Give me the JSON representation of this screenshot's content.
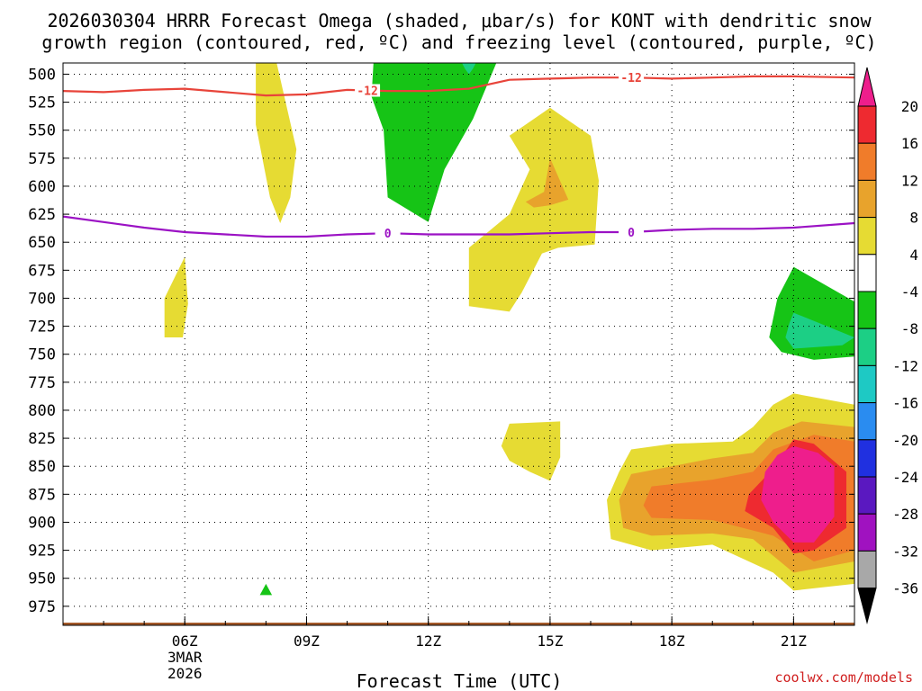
{
  "chart_data": {
    "type": "heatmap",
    "title": "2026030304 HRRR Forecast Omega (shaded, μbar/s) for KONT with dendritic snow growth region (contoured, red, ºC) and freezing level (contoured, purple, ºC)",
    "title_line1": "2026030304 HRRR Forecast Omega (shaded, μbar/s) for KONT with dendritic snow",
    "title_line2": "growth region (contoured, red, ºC) and freezing level (contoured, purple, ºC)",
    "xlabel": "Forecast Time (UTC)",
    "credit": "coolwx.com/models",
    "x_range_hours": [
      3.0,
      22.5
    ],
    "x_ticks": [
      {
        "hour": 6,
        "label": "06Z"
      },
      {
        "hour": 9,
        "label": "09Z"
      },
      {
        "hour": 12,
        "label": "12Z"
      },
      {
        "hour": 15,
        "label": "15Z"
      },
      {
        "hour": 18,
        "label": "18Z"
      },
      {
        "hour": 21,
        "label": "21Z"
      }
    ],
    "date_label": {
      "hour": 6,
      "line1": "3MAR",
      "line2": "2026"
    },
    "y_range_mb": [
      490,
      992
    ],
    "y_ticks": [
      500,
      525,
      550,
      575,
      600,
      625,
      650,
      675,
      700,
      725,
      750,
      775,
      800,
      825,
      850,
      875,
      900,
      925,
      950,
      975
    ],
    "grid": true,
    "surface_mb": 992,
    "colors": {
      "surface": "#a55a2a",
      "contour_minus12": "#e8443a",
      "contour_0": "#9b12c4"
    },
    "colorbar": {
      "labels": [
        "20",
        "16",
        "12",
        "8",
        "4",
        "-4",
        "-8",
        "-12",
        "-16",
        "-20",
        "-24",
        "-28",
        "-32",
        "-36"
      ],
      "bins": [
        {
          "from": 20,
          "to": 16,
          "color": "#ee2a30"
        },
        {
          "from": 16,
          "to": 12,
          "color": "#f07c2a"
        },
        {
          "from": 12,
          "to": 8,
          "color": "#e8a32c"
        },
        {
          "from": 8,
          "to": 4,
          "color": "#e6db33"
        },
        {
          "from": 4,
          "to": -4,
          "color": "#ffffff"
        },
        {
          "from": -4,
          "to": -8,
          "color": "#16c416"
        },
        {
          "from": -8,
          "to": -12,
          "color": "#1ccf85"
        },
        {
          "from": -12,
          "to": -16,
          "color": "#1ec9c4"
        },
        {
          "from": -16,
          "to": -20,
          "color": "#2a8cf0"
        },
        {
          "from": -20,
          "to": -24,
          "color": "#2030e0"
        },
        {
          "from": -24,
          "to": -28,
          "color": "#5a18c0"
        },
        {
          "from": -28,
          "to": -32,
          "color": "#a012c0"
        },
        {
          "from": -32,
          "to": -36,
          "color": "#a8a8a8"
        }
      ],
      "top_arrow_color": "#ee1e8c",
      "bottom_arrow_color": "#000000"
    },
    "contours": [
      {
        "name": "-12 C isotherm",
        "label": "-12",
        "color": "#e8443a",
        "points": [
          [
            3.0,
            515
          ],
          [
            4.0,
            516
          ],
          [
            5.0,
            514
          ],
          [
            6.0,
            513
          ],
          [
            7.0,
            516
          ],
          [
            8.0,
            519
          ],
          [
            9.0,
            518
          ],
          [
            10.0,
            514
          ],
          [
            11.0,
            515
          ],
          [
            12.0,
            515
          ],
          [
            13.0,
            513
          ],
          [
            14.0,
            505
          ],
          [
            15.0,
            504
          ],
          [
            16.0,
            503
          ],
          [
            17.0,
            503
          ],
          [
            18.0,
            504
          ],
          [
            19.0,
            503
          ],
          [
            20.0,
            502
          ],
          [
            21.0,
            502
          ],
          [
            22.5,
            503
          ]
        ],
        "label_hours": [
          10.5,
          17.0
        ]
      },
      {
        "name": "0 C freezing level",
        "label": "0",
        "color": "#9b12c4",
        "points": [
          [
            3.0,
            627
          ],
          [
            4.0,
            632
          ],
          [
            5.0,
            637
          ],
          [
            6.0,
            641
          ],
          [
            7.0,
            643
          ],
          [
            8.0,
            645
          ],
          [
            9.0,
            645
          ],
          [
            10.0,
            643
          ],
          [
            11.0,
            642
          ],
          [
            12.0,
            643
          ],
          [
            13.0,
            643
          ],
          [
            14.0,
            643
          ],
          [
            15.0,
            642
          ],
          [
            16.0,
            641
          ],
          [
            17.0,
            641
          ],
          [
            18.0,
            639
          ],
          [
            19.0,
            638
          ],
          [
            20.0,
            638
          ],
          [
            21.0,
            637
          ],
          [
            22.5,
            633
          ]
        ],
        "label_hours": [
          11.0,
          17.0
        ]
      }
    ],
    "filled_regions": [
      {
        "name": "rising 4 to 8 near 08Z aloft",
        "value_bin": "4 to 8",
        "color": "#e6db33",
        "points": [
          [
            7.75,
            488
          ],
          [
            8.25,
            488
          ],
          [
            8.75,
            567
          ],
          [
            8.6,
            610
          ],
          [
            8.35,
            633
          ],
          [
            8.1,
            610
          ],
          [
            7.75,
            545
          ]
        ]
      },
      {
        "name": "rising 4 to 8 near 06Z midlevel",
        "value_bin": "4 to 8",
        "color": "#e6db33",
        "points": [
          [
            6.0,
            663
          ],
          [
            6.08,
            705
          ],
          [
            5.95,
            735
          ],
          [
            5.5,
            735
          ],
          [
            5.5,
            700
          ]
        ]
      },
      {
        "name": "sinking -4 to -8 near 12Z",
        "value_bin": "-4 to -8",
        "color": "#16c416",
        "points": [
          [
            10.7,
            488
          ],
          [
            12.75,
            488
          ],
          [
            13.7,
            488
          ],
          [
            13.1,
            540
          ],
          [
            12.4,
            585
          ],
          [
            12.0,
            632
          ],
          [
            11.0,
            610
          ],
          [
            10.9,
            550
          ],
          [
            10.6,
            520
          ],
          [
            10.65,
            490
          ]
        ]
      },
      {
        "name": "sinking -8 to -12 near 13Z",
        "value_bin": "-8 to -12",
        "color": "#1ccf85",
        "points": [
          [
            12.8,
            488
          ],
          [
            13.2,
            488
          ],
          [
            13.1,
            495
          ],
          [
            13.0,
            500
          ],
          [
            12.9,
            495
          ]
        ]
      },
      {
        "name": "rising 4 to 8 near 15Z",
        "value_bin": "4 to 8",
        "color": "#e6db33",
        "points": [
          [
            15.0,
            530
          ],
          [
            16.0,
            555
          ],
          [
            16.2,
            595
          ],
          [
            16.1,
            652
          ],
          [
            15.2,
            655
          ],
          [
            14.8,
            660
          ],
          [
            14.3,
            695
          ],
          [
            14.0,
            712
          ],
          [
            13.0,
            707
          ],
          [
            13.0,
            655
          ],
          [
            14.0,
            625
          ],
          [
            14.5,
            585
          ],
          [
            14.0,
            555
          ]
        ]
      },
      {
        "name": "rising 8 to 12 near 15Z",
        "value_bin": "8 to 12",
        "color": "#e8a32c",
        "points": [
          [
            15.0,
            575
          ],
          [
            15.45,
            612
          ],
          [
            15.0,
            617
          ],
          [
            14.6,
            619
          ],
          [
            14.4,
            614
          ],
          [
            14.85,
            605
          ]
        ]
      },
      {
        "name": "rising 4 to 8 near 15Z low level",
        "value_bin": "4 to 8",
        "color": "#e6db33",
        "points": [
          [
            14.0,
            812
          ],
          [
            15.25,
            810
          ],
          [
            15.25,
            842
          ],
          [
            15.0,
            863
          ],
          [
            14.5,
            855
          ],
          [
            14.0,
            845
          ],
          [
            13.8,
            832
          ]
        ]
      },
      {
        "name": "rising 4 to 8 near 19-21Z low level",
        "value_bin": "4 to 8",
        "color": "#e6db33",
        "points": [
          [
            17.0,
            835
          ],
          [
            18.0,
            830
          ],
          [
            19.5,
            828
          ],
          [
            20.0,
            815
          ],
          [
            20.5,
            795
          ],
          [
            21.0,
            785
          ],
          [
            22.5,
            795
          ],
          [
            22.5,
            955
          ],
          [
            21.0,
            961
          ],
          [
            20.5,
            945
          ],
          [
            19.0,
            920
          ],
          [
            17.5,
            925
          ],
          [
            16.5,
            915
          ],
          [
            16.4,
            880
          ],
          [
            16.7,
            855
          ]
        ]
      },
      {
        "name": "rising 8 to 12 near 19-21Z low level",
        "value_bin": "8 to 12",
        "color": "#e8a32c",
        "points": [
          [
            17.0,
            857
          ],
          [
            19.0,
            843
          ],
          [
            20.0,
            838
          ],
          [
            20.5,
            820
          ],
          [
            21.2,
            810
          ],
          [
            22.5,
            815
          ],
          [
            22.5,
            935
          ],
          [
            21.0,
            945
          ],
          [
            20.0,
            915
          ],
          [
            19.0,
            910
          ],
          [
            17.5,
            912
          ],
          [
            16.8,
            905
          ],
          [
            16.7,
            880
          ]
        ]
      },
      {
        "name": "rising 12 to 16 near 19-21Z low level",
        "value_bin": "12 to 16",
        "color": "#f07c2a",
        "points": [
          [
            17.5,
            868
          ],
          [
            19.0,
            862
          ],
          [
            20.0,
            855
          ],
          [
            20.5,
            835
          ],
          [
            21.5,
            822
          ],
          [
            22.5,
            828
          ],
          [
            22.5,
            925
          ],
          [
            21.5,
            935
          ],
          [
            20.5,
            912
          ],
          [
            19.0,
            898
          ],
          [
            17.5,
            896
          ],
          [
            17.3,
            885
          ]
        ]
      },
      {
        "name": "rising 16 to 20 near 21Z",
        "value_bin": "16 to 20",
        "color": "#ee2a30",
        "points": [
          [
            20.5,
            852
          ],
          [
            21.0,
            826
          ],
          [
            21.5,
            830
          ],
          [
            22.3,
            855
          ],
          [
            22.3,
            905
          ],
          [
            21.5,
            925
          ],
          [
            21.0,
            928
          ],
          [
            20.5,
            905
          ],
          [
            19.8,
            890
          ],
          [
            19.9,
            875
          ]
        ]
      },
      {
        "name": "rising above 20 near 21Z",
        "value_bin": "> 20",
        "color": "#ee1e8c",
        "points": [
          [
            21.0,
            832
          ],
          [
            21.6,
            838
          ],
          [
            22.0,
            850
          ],
          [
            22.0,
            895
          ],
          [
            21.5,
            918
          ],
          [
            21.0,
            918
          ],
          [
            20.5,
            900
          ],
          [
            20.2,
            880
          ],
          [
            20.3,
            855
          ],
          [
            20.6,
            840
          ]
        ]
      },
      {
        "name": "sinking -4 to -8 near 21Z midlevel",
        "value_bin": "-4 to -8",
        "color": "#16c416",
        "points": [
          [
            21.0,
            672
          ],
          [
            22.5,
            703
          ],
          [
            22.5,
            752
          ],
          [
            21.5,
            755
          ],
          [
            20.7,
            748
          ],
          [
            20.4,
            735
          ],
          [
            20.6,
            700
          ]
        ]
      },
      {
        "name": "sinking -8 to -12 near 21Z midlevel",
        "value_bin": "-8 to -12",
        "color": "#1ccf85",
        "points": [
          [
            21.0,
            713
          ],
          [
            22.5,
            735
          ],
          [
            22.2,
            742
          ],
          [
            21.0,
            745
          ],
          [
            20.8,
            735
          ],
          [
            20.9,
            722
          ]
        ]
      },
      {
        "name": "sinking -4 to -8 near 08Z low level",
        "value_bin": "-4 to -8",
        "color": "#16c416",
        "points": [
          [
            8.0,
            955
          ],
          [
            8.15,
            965
          ],
          [
            7.85,
            965
          ]
        ]
      }
    ]
  }
}
